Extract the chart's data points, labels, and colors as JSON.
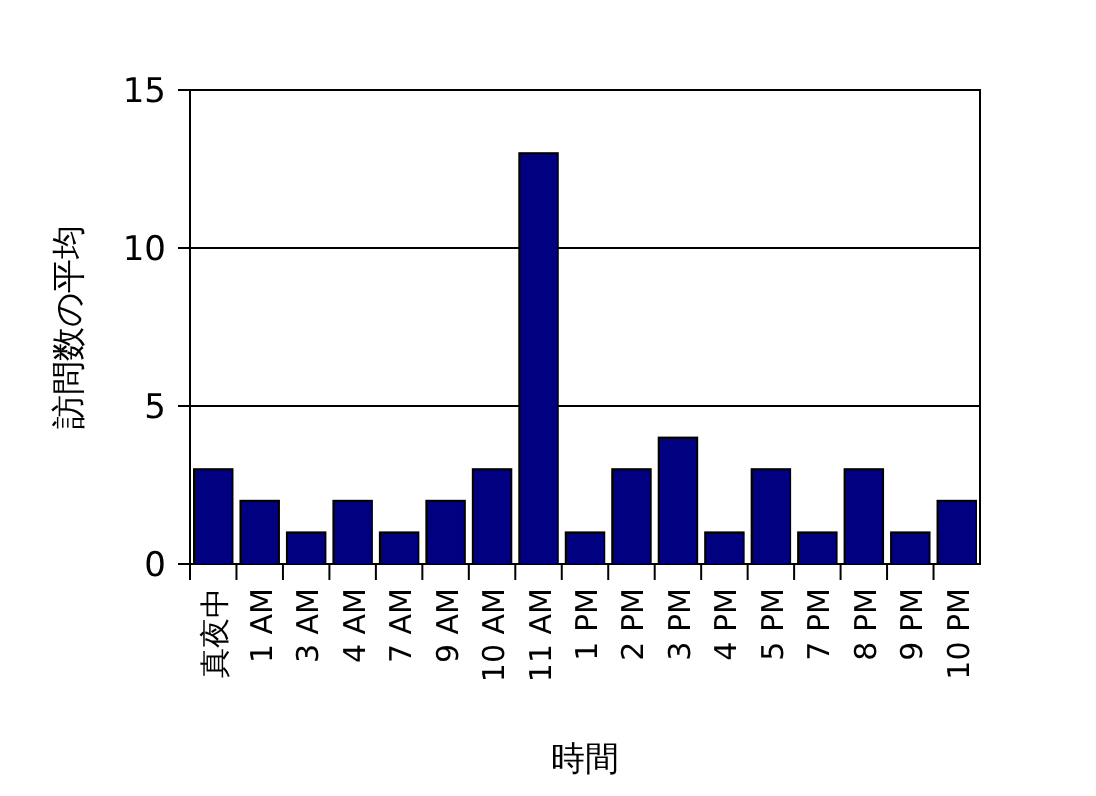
{
  "chart_data": {
    "type": "bar",
    "xlabel": "時間",
    "ylabel": "訪問数の平均",
    "categories": [
      "真夜中",
      "1 AM",
      "3 AM",
      "4 AM",
      "7 AM",
      "9 AM",
      "10 AM",
      "11 AM",
      "1 PM",
      "2 PM",
      "3 PM",
      "4 PM",
      "5 PM",
      "7 PM",
      "8 PM",
      "9 PM",
      "10 PM"
    ],
    "values": [
      3,
      2,
      1,
      2,
      1,
      2,
      3,
      13,
      1,
      3,
      4,
      1,
      3,
      1,
      3,
      1,
      2
    ],
    "color": "#000080",
    "ylim": [
      0,
      15
    ],
    "yticks": [
      0,
      5,
      10,
      15
    ],
    "grid": "y"
  }
}
